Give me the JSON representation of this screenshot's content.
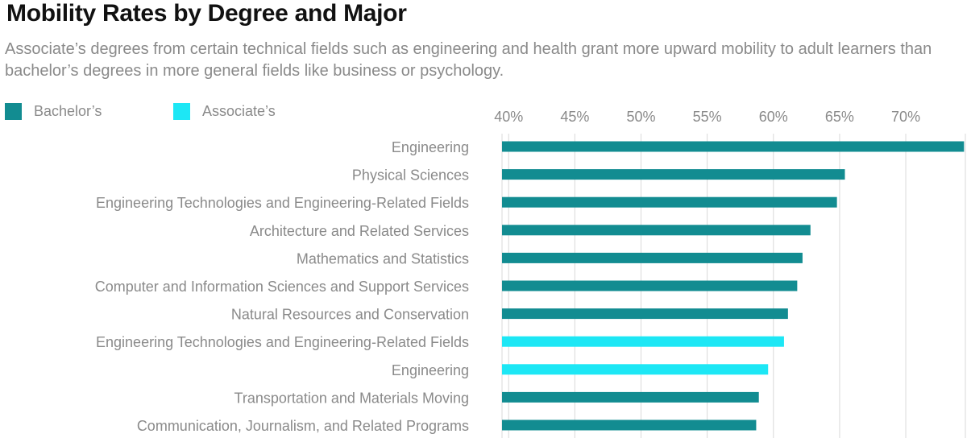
{
  "title": "Mobility Rates by Degree and Major",
  "subtitle": "Associate’s degrees from certain technical fields such as engineering and health grant more upward mobility to adult learners than bachelor’s degrees in more general fields like business or psychology.",
  "colors": {
    "bachelors": "#128c91",
    "associates": "#1de7f5",
    "text": "#8a8a8a",
    "grid": "#d9d9d9",
    "title": "#111111"
  },
  "legend": [
    {
      "label": "Bachelor’s",
      "color": "#128c91"
    },
    {
      "label": "Associate’s",
      "color": "#1de7f5"
    }
  ],
  "chart_data": {
    "type": "bar",
    "orientation": "horizontal",
    "title": "Mobility Rates by Degree and Major",
    "xlabel": "",
    "ylabel": "",
    "xlim": [
      39.5,
      74.5
    ],
    "xticks": [
      40,
      45,
      50,
      55,
      60,
      65,
      70
    ],
    "xtick_labels": [
      "40%",
      "45%",
      "50%",
      "55%",
      "60%",
      "65%",
      "70%"
    ],
    "axis_position": "top",
    "grid": true,
    "legend_position": "top-left",
    "categories": [
      "Engineering",
      "Physical Sciences",
      "Engineering Technologies and Engineering-Related Fields",
      "Architecture and Related Services",
      "Mathematics and Statistics",
      "Computer and Information Sciences and Support Services",
      "Natural Resources and Conservation",
      "Engineering Technologies and Engineering-Related Fields",
      "Engineering",
      "Transportation and Materials Moving",
      "Communication, Journalism, and Related Programs"
    ],
    "values": [
      74.4,
      65.4,
      64.8,
      62.8,
      62.2,
      61.8,
      61.1,
      60.8,
      59.6,
      58.9,
      58.7
    ],
    "degree": [
      "Bachelor’s",
      "Bachelor’s",
      "Bachelor’s",
      "Bachelor’s",
      "Bachelor’s",
      "Bachelor’s",
      "Bachelor’s",
      "Associate’s",
      "Associate’s",
      "Bachelor’s",
      "Bachelor’s"
    ]
  }
}
